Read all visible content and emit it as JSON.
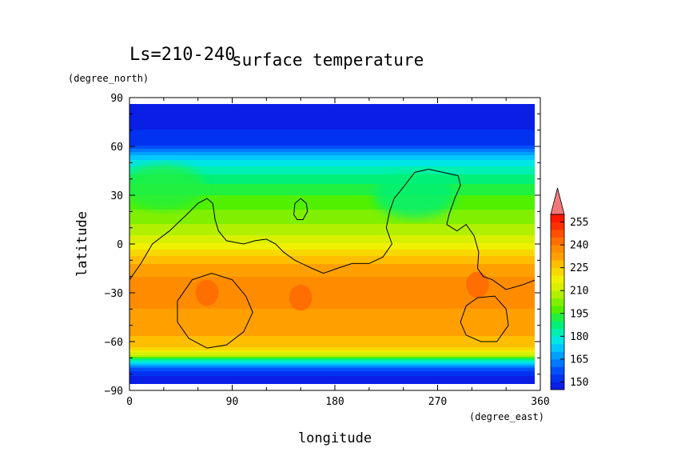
{
  "chart_data": {
    "type": "heatmap",
    "title": "surface temperature",
    "subtitle": "Ls=210-240",
    "xlabel": "longitude",
    "ylabel": "latitude",
    "xunit": "(degree_east)",
    "yunit": "(degree_north)",
    "xlim": [
      0,
      360
    ],
    "ylim": [
      -90,
      90
    ],
    "xticks": [
      "0",
      "90",
      "180",
      "270",
      "360"
    ],
    "yticks": [
      "90",
      "60",
      "30",
      "0",
      "−30",
      "−60",
      "−90"
    ],
    "xtick_values": [
      0,
      90,
      180,
      270,
      360
    ],
    "ytick_values": [
      90,
      60,
      30,
      0,
      -30,
      -60,
      -90
    ],
    "colorbar": {
      "levels": [
        145,
        150,
        155,
        160,
        165,
        170,
        175,
        180,
        185,
        190,
        195,
        200,
        205,
        210,
        215,
        220,
        225,
        230,
        235,
        240,
        245,
        250,
        255,
        260
      ],
      "tick_labels": [
        "150",
        "165",
        "180",
        "195",
        "210",
        "225",
        "240",
        "255"
      ],
      "tick_values": [
        150,
        165,
        180,
        195,
        210,
        225,
        240,
        255
      ],
      "colors": [
        "#0a1ee6",
        "#0032f0",
        "#0050fa",
        "#0078ff",
        "#00a0ff",
        "#00c8ff",
        "#00e6e6",
        "#00f0b4",
        "#00f078",
        "#20f040",
        "#50f000",
        "#80f000",
        "#b0f000",
        "#d8f000",
        "#f0f000",
        "#f8d800",
        "#ffbe00",
        "#ffa000",
        "#ff8c00",
        "#ff6e00",
        "#ff5000",
        "#ff3000",
        "#ff1800"
      ],
      "over_color": "#f07878"
    },
    "latitude_profile": [
      {
        "lat": 87,
        "value": 148
      },
      {
        "lat": 80,
        "value": 149
      },
      {
        "lat": 70,
        "value": 150
      },
      {
        "lat": 62,
        "value": 152
      },
      {
        "lat": 55,
        "value": 170
      },
      {
        "lat": 45,
        "value": 183
      },
      {
        "lat": 35,
        "value": 192
      },
      {
        "lat": 25,
        "value": 198
      },
      {
        "lat": 15,
        "value": 203
      },
      {
        "lat": 5,
        "value": 210
      },
      {
        "lat": -5,
        "value": 222
      },
      {
        "lat": -15,
        "value": 233
      },
      {
        "lat": -25,
        "value": 237
      },
      {
        "lat": -35,
        "value": 236
      },
      {
        "lat": -45,
        "value": 234
      },
      {
        "lat": -55,
        "value": 231
      },
      {
        "lat": -63,
        "value": 225
      },
      {
        "lat": -68,
        "value": 212
      },
      {
        "lat": -72,
        "value": 180
      },
      {
        "lat": -77,
        "value": 158
      },
      {
        "lat": -82,
        "value": 149
      },
      {
        "lat": -87,
        "value": 148
      }
    ],
    "warm_spots": [
      {
        "lon": 68,
        "lat": -30,
        "value": 242
      },
      {
        "lon": 150,
        "lat": -33,
        "value": 242
      },
      {
        "lon": 305,
        "lat": -25,
        "value": 243
      }
    ],
    "cool_regions": [
      {
        "lon": 250,
        "lat": 30,
        "value": 188
      },
      {
        "lon": 30,
        "lat": 35,
        "value": 192
      }
    ],
    "topography_contours": [
      [
        [
          0,
          -22
        ],
        [
          10,
          -12
        ],
        [
          20,
          0
        ],
        [
          35,
          8
        ],
        [
          50,
          18
        ],
        [
          60,
          25
        ],
        [
          68,
          28
        ],
        [
          73,
          25
        ],
        [
          75,
          15
        ],
        [
          78,
          8
        ],
        [
          85,
          2
        ],
        [
          100,
          0
        ],
        [
          110,
          2
        ],
        [
          120,
          3
        ],
        [
          128,
          0
        ],
        [
          135,
          -5
        ],
        [
          145,
          -10
        ],
        [
          160,
          -15
        ],
        [
          170,
          -18
        ],
        [
          182,
          -15
        ],
        [
          195,
          -12
        ],
        [
          210,
          -12
        ],
        [
          222,
          -8
        ],
        [
          230,
          0
        ],
        [
          225,
          10
        ],
        [
          228,
          20
        ],
        [
          232,
          28
        ],
        [
          240,
          35
        ],
        [
          250,
          44
        ],
        [
          262,
          46
        ],
        [
          275,
          44
        ],
        [
          288,
          42
        ],
        [
          290,
          36
        ],
        [
          285,
          28
        ],
        [
          280,
          18
        ],
        [
          278,
          12
        ],
        [
          287,
          8
        ],
        [
          295,
          12
        ],
        [
          302,
          5
        ],
        [
          306,
          -5
        ],
        [
          305,
          -15
        ],
        [
          310,
          -20
        ],
        [
          318,
          -22
        ],
        [
          330,
          -28
        ],
        [
          345,
          -25
        ],
        [
          356,
          -22
        ],
        [
          360,
          -15
        ]
      ],
      [
        [
          145,
          25
        ],
        [
          150,
          28
        ],
        [
          155,
          25
        ],
        [
          156,
          20
        ],
        [
          152,
          15
        ],
        [
          147,
          15
        ],
        [
          144,
          18
        ],
        [
          145,
          25
        ]
      ],
      [
        [
          42,
          -35
        ],
        [
          55,
          -22
        ],
        [
          72,
          -18
        ],
        [
          90,
          -22
        ],
        [
          102,
          -32
        ],
        [
          108,
          -42
        ],
        [
          100,
          -54
        ],
        [
          85,
          -62
        ],
        [
          68,
          -64
        ],
        [
          52,
          -58
        ],
        [
          42,
          -48
        ],
        [
          42,
          -35
        ]
      ],
      [
        [
          290,
          -48
        ],
        [
          295,
          -38
        ],
        [
          305,
          -33
        ],
        [
          320,
          -32
        ],
        [
          330,
          -40
        ],
        [
          332,
          -50
        ],
        [
          322,
          -60
        ],
        [
          308,
          -60
        ],
        [
          295,
          -56
        ],
        [
          290,
          -48
        ]
      ]
    ]
  }
}
